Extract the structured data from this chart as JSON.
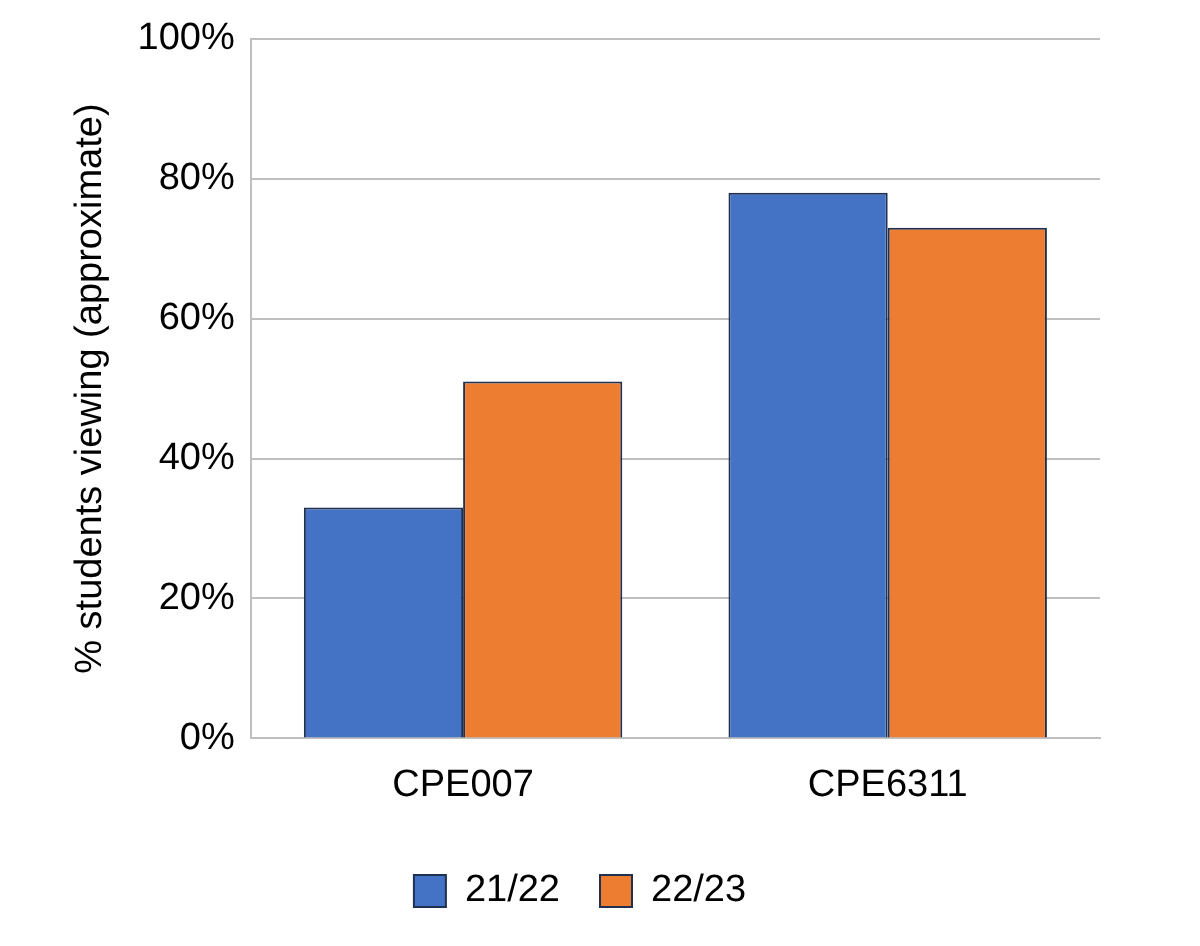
{
  "chart_data": {
    "type": "bar",
    "ylabel": "% students viewing (approximate)",
    "categories": [
      "CPE007",
      "CPE6311"
    ],
    "series": [
      {
        "name": "21/22",
        "color": "#4472c4",
        "values": [
          33,
          78
        ]
      },
      {
        "name": "22/23",
        "color": "#ed7d31",
        "values": [
          51,
          73
        ]
      }
    ],
    "ylim": [
      0,
      100
    ],
    "yticks": [
      {
        "value": 0,
        "label": "0%"
      },
      {
        "value": 20,
        "label": "20%"
      },
      {
        "value": 40,
        "label": "40%"
      },
      {
        "value": 60,
        "label": "60%"
      },
      {
        "value": 80,
        "label": "80%"
      },
      {
        "value": 100,
        "label": "100%"
      }
    ],
    "grid": "y",
    "legend": "bottom"
  }
}
